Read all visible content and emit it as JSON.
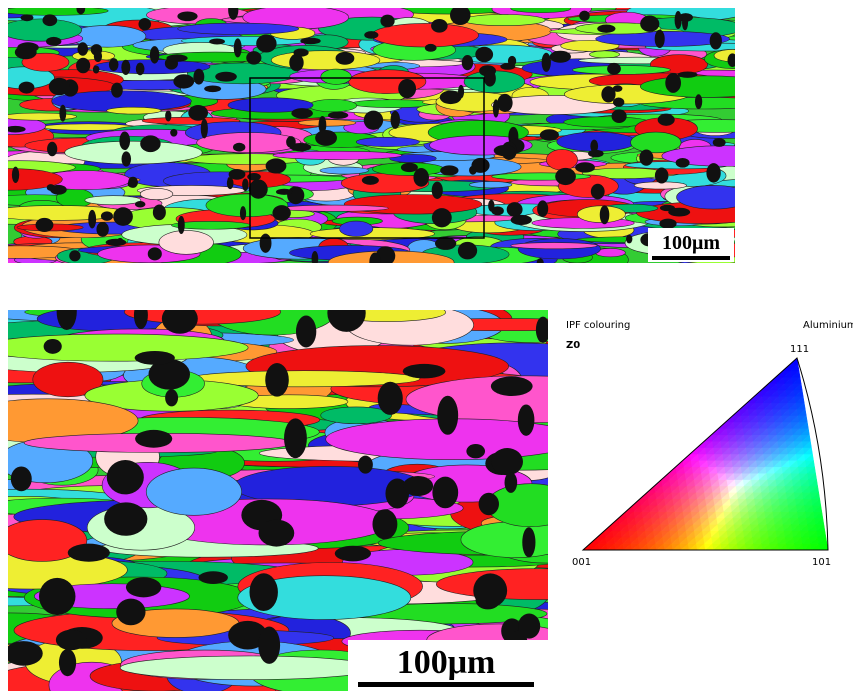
{
  "panels": {
    "top": {
      "scale_bar": "100μm"
    },
    "bottom": {
      "scale_bar": "100μm"
    }
  },
  "legend": {
    "title": "IPF colouring",
    "material": "Aluminium",
    "direction": "Z0",
    "corners": {
      "top": "111",
      "left": "001",
      "right": "101"
    }
  }
}
